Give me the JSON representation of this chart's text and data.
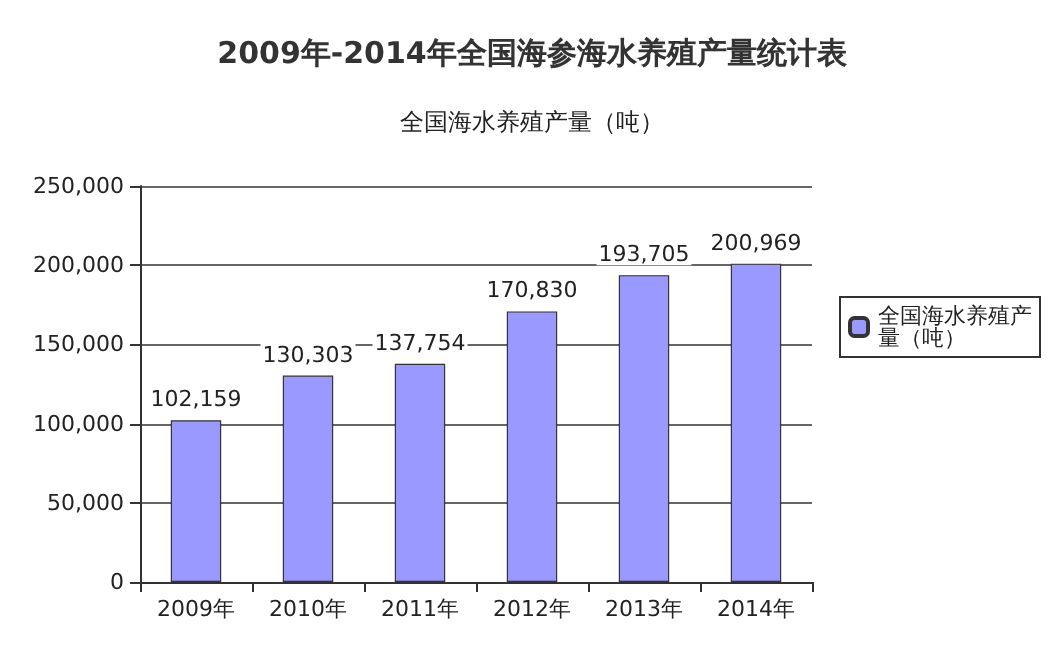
{
  "chart_data": {
    "type": "bar",
    "title": "2009年-2014年全国海参海水养殖产量统计表",
    "subtitle": "全国海水养殖产量（吨）",
    "categories": [
      "2009年",
      "2010年",
      "2011年",
      "2012年",
      "2013年",
      "2014年"
    ],
    "series": [
      {
        "name": "全国海水养殖产量（吨）",
        "color": "#9999ff",
        "values": [
          102159,
          130303,
          137754,
          170830,
          193705,
          200969
        ],
        "value_labels": [
          "102,159",
          "130,303",
          "137,754",
          "170,830",
          "193,705",
          "200,969"
        ]
      }
    ],
    "ylim": [
      0,
      250000
    ],
    "yticks": [
      {
        "value": 0,
        "label": "0"
      },
      {
        "value": 50000,
        "label": "50,000"
      },
      {
        "value": 100000,
        "label": "100,000"
      },
      {
        "value": 150000,
        "label": "150,000"
      },
      {
        "value": 200000,
        "label": "200,000"
      },
      {
        "value": 250000,
        "label": "250,000"
      }
    ],
    "grid": "y",
    "legend": "right"
  }
}
